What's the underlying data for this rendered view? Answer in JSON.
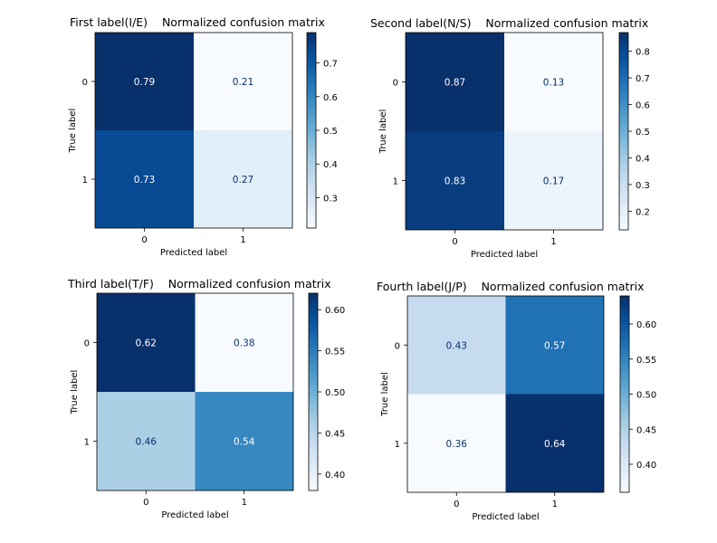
{
  "chart_data": [
    {
      "type": "heatmap",
      "title": "First label(I/E)    Normalized confusion matrix",
      "xlabel": "Predicted label",
      "ylabel": "True label",
      "x_ticks": [
        "0",
        "1"
      ],
      "y_ticks": [
        "0",
        "1"
      ],
      "values": [
        [
          0.79,
          0.21
        ],
        [
          0.73,
          0.27
        ]
      ],
      "value_labels": [
        [
          "0.79",
          "0.21"
        ],
        [
          "0.73",
          "0.27"
        ]
      ],
      "colorbar": {
        "min": 0.21,
        "max": 0.79,
        "ticks": [
          0.3,
          0.4,
          0.5,
          0.6,
          0.7
        ],
        "tick_labels": [
          "0.3",
          "0.4",
          "0.5",
          "0.6",
          "0.7"
        ]
      },
      "colormap": "Blues"
    },
    {
      "type": "heatmap",
      "title": "Second label(N/S)    Normalized confusion matrix",
      "xlabel": "Predicted label",
      "ylabel": "True label",
      "x_ticks": [
        "0",
        "1"
      ],
      "y_ticks": [
        "0",
        "1"
      ],
      "values": [
        [
          0.87,
          0.13
        ],
        [
          0.83,
          0.17
        ]
      ],
      "value_labels": [
        [
          "0.87",
          "0.13"
        ],
        [
          "0.83",
          "0.17"
        ]
      ],
      "colorbar": {
        "min": 0.13,
        "max": 0.87,
        "ticks": [
          0.2,
          0.3,
          0.4,
          0.5,
          0.6,
          0.7,
          0.8
        ],
        "tick_labels": [
          "0.2",
          "0.3",
          "0.4",
          "0.5",
          "0.6",
          "0.7",
          "0.8"
        ]
      },
      "colormap": "Blues"
    },
    {
      "type": "heatmap",
      "title": "Third label(T/F)    Normalized confusion matrix",
      "xlabel": "Predicted label",
      "ylabel": "True label",
      "x_ticks": [
        "0",
        "1"
      ],
      "y_ticks": [
        "0",
        "1"
      ],
      "values": [
        [
          0.62,
          0.38
        ],
        [
          0.46,
          0.54
        ]
      ],
      "value_labels": [
        [
          "0.62",
          "0.38"
        ],
        [
          "0.46",
          "0.54"
        ]
      ],
      "colorbar": {
        "min": 0.38,
        "max": 0.62,
        "ticks": [
          0.4,
          0.45,
          0.5,
          0.55,
          0.6
        ],
        "tick_labels": [
          "0.40",
          "0.45",
          "0.50",
          "0.55",
          "0.60"
        ]
      },
      "colormap": "Blues"
    },
    {
      "type": "heatmap",
      "title": "Fourth label(J/P)    Normalized confusion matrix",
      "xlabel": "Predicted label",
      "ylabel": "True label",
      "x_ticks": [
        "0",
        "1"
      ],
      "y_ticks": [
        "0",
        "1"
      ],
      "values": [
        [
          0.43,
          0.57
        ],
        [
          0.36,
          0.64
        ]
      ],
      "value_labels": [
        [
          "0.43",
          "0.57"
        ],
        [
          "0.36",
          "0.64"
        ]
      ],
      "colorbar": {
        "min": 0.36,
        "max": 0.64,
        "ticks": [
          0.4,
          0.45,
          0.5,
          0.55,
          0.6
        ],
        "tick_labels": [
          "0.40",
          "0.45",
          "0.50",
          "0.55",
          "0.60"
        ]
      },
      "colormap": "Blues"
    }
  ]
}
